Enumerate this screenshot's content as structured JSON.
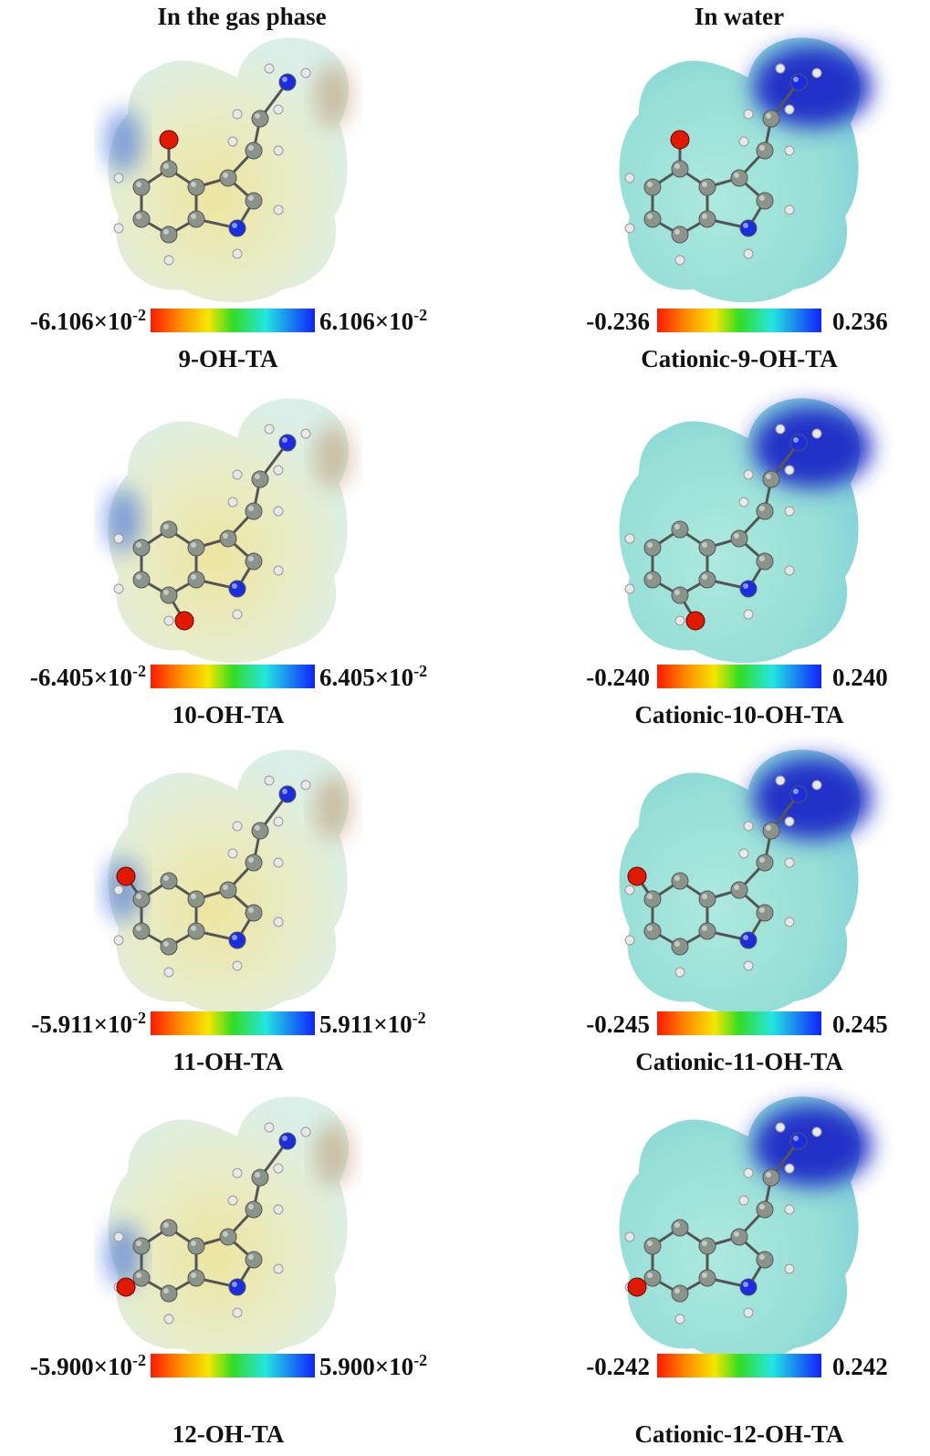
{
  "gas_phase": {
    "title": "In the gas phase",
    "panels": [
      {
        "name": "9-OH-TA",
        "min": {
          "base": "-6.106×10",
          "exp": "-2"
        },
        "max": {
          "base": "6.106×10",
          "exp": "-2"
        }
      },
      {
        "name": "10-OH-TA",
        "min": {
          "base": "-6.405×10",
          "exp": "-2"
        },
        "max": {
          "base": "6.405×10",
          "exp": "-2"
        }
      },
      {
        "name": "11-OH-TA",
        "min": {
          "base": "-5.911×10",
          "exp": "-2"
        },
        "max": {
          "base": "5.911×10",
          "exp": "-2"
        }
      },
      {
        "name": "12-OH-TA",
        "min": {
          "base": "-5.900×10",
          "exp": "-2"
        },
        "max": {
          "base": "5.900×10",
          "exp": "-2"
        }
      }
    ]
  },
  "water": {
    "title": "In water",
    "panels": [
      {
        "name": "Cationic-9-OH-TA",
        "min": "-0.236",
        "max": "0.236"
      },
      {
        "name": "Cationic-10-OH-TA",
        "min": "-0.240",
        "max": "0.240"
      },
      {
        "name": "Cationic-11-OH-TA",
        "min": "-0.245",
        "max": "0.245"
      },
      {
        "name": "Cationic-12-OH-TA",
        "min": "-0.242",
        "max": "0.242"
      }
    ]
  }
}
